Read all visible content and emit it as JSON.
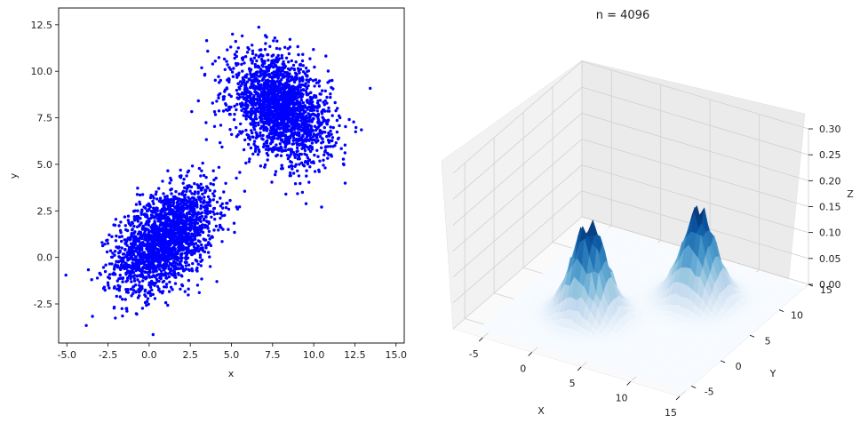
{
  "chart_data": [
    {
      "type": "scatter",
      "title": "",
      "xlabel": "x",
      "ylabel": "y",
      "xlim": [
        -5.5,
        15.5
      ],
      "ylim": [
        -4.6,
        13.4
      ],
      "xticks": [
        -5.0,
        -2.5,
        0.0,
        2.5,
        5.0,
        7.5,
        10.0,
        12.5,
        15.0
      ],
      "xtick_labels": [
        "-5.0",
        "-2.5",
        "0.0",
        "2.5",
        "5.0",
        "7.5",
        "10.0",
        "12.5",
        "15.0"
      ],
      "yticks": [
        -2.5,
        0.0,
        2.5,
        5.0,
        7.5,
        10.0,
        12.5
      ],
      "ytick_labels": [
        "-2.5",
        "0.0",
        "2.5",
        "5.0",
        "7.5",
        "10.0",
        "12.5"
      ],
      "marker_color": "#0000ff",
      "clusters": [
        {
          "center": [
            1,
            1
          ],
          "std": [
            1.5,
            1.4
          ],
          "correlation": 0.45,
          "approx_points": 2048
        },
        {
          "center": [
            8,
            8
          ],
          "std": [
            1.5,
            1.4
          ],
          "correlation": -0.35,
          "approx_points": 2048
        }
      ],
      "n_points": 4096
    },
    {
      "type": "surface",
      "title": "n = 4096",
      "xlabel": "X",
      "ylabel": "Y",
      "zlabel": "Z",
      "xlim": [
        -8,
        15
      ],
      "ylim": [
        -7,
        15
      ],
      "zlim": [
        0,
        0.3
      ],
      "xticks": [
        -5,
        0,
        5,
        10,
        15
      ],
      "yticks": [
        -5,
        0,
        5,
        10,
        15
      ],
      "zticks": [
        0.0,
        0.05,
        0.1,
        0.15,
        0.2,
        0.25,
        0.3
      ],
      "ztick_labels": [
        "0.00",
        "0.05",
        "0.10",
        "0.15",
        "0.20",
        "0.25",
        "0.30"
      ],
      "colormap": "Blues",
      "peaks": [
        {
          "center": [
            1,
            1
          ],
          "height": 0.17
        },
        {
          "center": [
            8,
            8
          ],
          "height": 0.17
        }
      ]
    }
  ]
}
